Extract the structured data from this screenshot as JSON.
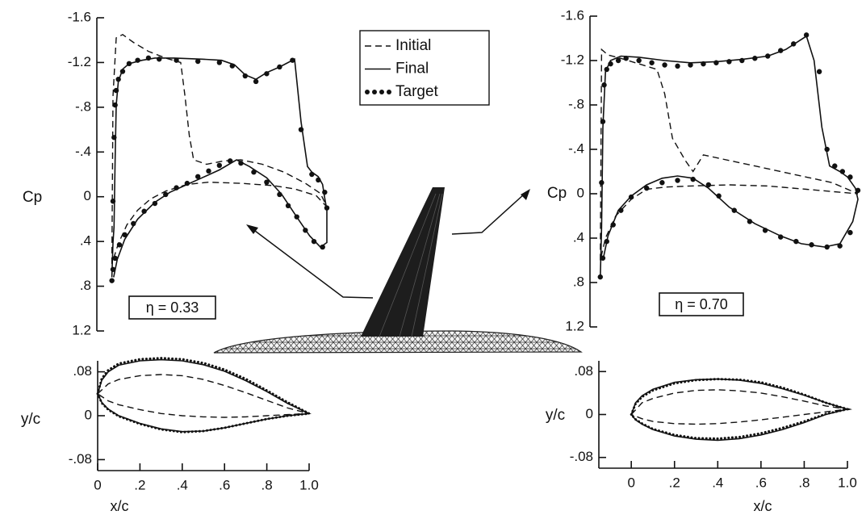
{
  "chart_data": [
    {
      "type": "line",
      "y_label": "Cp",
      "annotation": "η = 0.33",
      "legend": "top-right",
      "grid": false,
      "y_inverted": true,
      "xlim": [
        -0.07,
        1.0
      ],
      "ylim": [
        -1.6,
        1.2
      ],
      "yticks": [
        -1.6,
        -1.2,
        {
          "value": -0.8,
          "label": "-.8"
        },
        {
          "value": -0.4,
          "label": "-.4"
        },
        0,
        {
          "value": 0.4,
          "label": ".4"
        },
        {
          "value": 0.8,
          "label": ".8"
        },
        1.2
      ],
      "series": [
        {
          "name": "Initial",
          "color": "#111111",
          "style": "dashed",
          "x": [
            0,
            0.005,
            0.02,
            0.05,
            0.1,
            0.17,
            0.25,
            0.32,
            0.34,
            0.36,
            0.38,
            0.44,
            0.52,
            0.6,
            0.7,
            0.8,
            0.9,
            0.97,
            1.0,
            0.95,
            0.85,
            0.75,
            0.6,
            0.45,
            0.35,
            0.25,
            0.18,
            0.12,
            0.07,
            0.03,
            0
          ],
          "values": [
            0.6,
            -0.9,
            -1.42,
            -1.45,
            -1.38,
            -1.3,
            -1.24,
            -1.2,
            -0.9,
            -0.55,
            -0.33,
            -0.29,
            -0.32,
            -0.33,
            -0.29,
            -0.22,
            -0.12,
            -0.03,
            0.09,
            -0.01,
            -0.07,
            -0.1,
            -0.12,
            -0.13,
            -0.11,
            -0.05,
            0.02,
            0.12,
            0.25,
            0.42,
            0.6
          ]
        },
        {
          "name": "Final",
          "color": "#111111",
          "style": "solid",
          "x": [
            0,
            0.005,
            0.01,
            0.015,
            0.02,
            0.03,
            0.05,
            0.08,
            0.14,
            0.2,
            0.29,
            0.42,
            0.51,
            0.57,
            0.62,
            0.67,
            0.72,
            0.78,
            0.85,
            0.88,
            0.91,
            0.93,
            0.96,
            0.98,
            0.99,
            1.0,
            1.0,
            0.97,
            0.92,
            0.87,
            0.79,
            0.72,
            0.64,
            0.58,
            0.5,
            0.42,
            0.35,
            0.27,
            0.2,
            0.12,
            0.06,
            0.025,
            0.008
          ],
          "values": [
            0.72,
            0.41,
            0.27,
            -0.31,
            -0.82,
            -1.03,
            -1.14,
            -1.19,
            -1.22,
            -1.24,
            -1.24,
            -1.23,
            -1.22,
            -1.18,
            -1.09,
            -1.05,
            -1.11,
            -1.16,
            -1.23,
            -0.67,
            -0.27,
            -0.22,
            -0.18,
            -0.11,
            0.01,
            0.12,
            0.41,
            0.45,
            0.35,
            0.21,
            -0.02,
            -0.17,
            -0.27,
            -0.33,
            -0.24,
            -0.17,
            -0.11,
            -0.04,
            0.05,
            0.2,
            0.38,
            0.56,
            0.72
          ]
        },
        {
          "name": "Target",
          "color": "#111111",
          "style": "markers",
          "x": [
            0,
            0.005,
            0.01,
            0.015,
            0.02,
            0.03,
            0.05,
            0.08,
            0.12,
            0.17,
            0.22,
            0.3,
            0.4,
            0.5,
            0.56,
            0.62,
            0.67,
            0.72,
            0.78,
            0.84,
            0.88,
            0.93,
            0.96,
            0.99,
            1.0,
            0.98,
            0.94,
            0.9,
            0.86,
            0.82,
            0.78,
            0.72,
            0.66,
            0.6,
            0.55,
            0.5,
            0.45,
            0.4,
            0.35,
            0.3,
            0.25,
            0.2,
            0.15,
            0.1,
            0.06,
            0.035,
            0.015,
            0.005
          ],
          "values": [
            0.75,
            0.04,
            -0.53,
            -0.82,
            -0.95,
            -1.05,
            -1.12,
            -1.19,
            -1.22,
            -1.24,
            -1.23,
            -1.22,
            -1.21,
            -1.2,
            -1.17,
            -1.08,
            -1.03,
            -1.1,
            -1.16,
            -1.22,
            -0.6,
            -0.2,
            -0.15,
            -0.04,
            0.1,
            0.45,
            0.4,
            0.3,
            0.18,
            0.08,
            -0.02,
            -0.13,
            -0.22,
            -0.3,
            -0.32,
            -0.28,
            -0.23,
            -0.18,
            -0.12,
            -0.08,
            -0.02,
            0.06,
            0.13,
            0.24,
            0.34,
            0.43,
            0.55,
            0.65
          ]
        }
      ]
    },
    {
      "type": "line",
      "y_label": "Cp",
      "annotation": "η = 0.70",
      "grid": false,
      "y_inverted": true,
      "xlim": [
        -0.04,
        1.0
      ],
      "ylim": [
        -1.6,
        1.2
      ],
      "yticks": [
        -1.6,
        -1.2,
        {
          "value": -0.8,
          "label": "-.8"
        },
        {
          "value": -0.4,
          "label": "-.4"
        },
        0,
        {
          "value": 0.4,
          "label": ".4"
        },
        {
          "value": 0.8,
          "label": ".8"
        },
        1.2
      ],
      "series": [
        {
          "color": "#111111",
          "style": "dashed",
          "x": [
            0,
            0.005,
            0.03,
            0.08,
            0.15,
            0.22,
            0.25,
            0.28,
            0.33,
            0.36,
            0.4,
            0.5,
            0.6,
            0.7,
            0.8,
            0.9,
            1.0,
            0.9,
            0.8,
            0.65,
            0.5,
            0.35,
            0.25,
            0.18,
            0.12,
            0.06,
            0.02,
            0
          ],
          "values": [
            0.6,
            -1.3,
            -1.25,
            -1.22,
            -1.17,
            -1.12,
            -0.9,
            -0.5,
            -0.3,
            -0.2,
            -0.35,
            -0.3,
            -0.25,
            -0.2,
            -0.15,
            -0.1,
            0,
            -0.02,
            -0.04,
            -0.07,
            -0.08,
            -0.07,
            -0.06,
            -0.04,
            0.05,
            0.2,
            0.4,
            0.6
          ]
        },
        {
          "color": "#111111",
          "style": "solid",
          "x": [
            0,
            0.005,
            0.01,
            0.02,
            0.04,
            0.08,
            0.15,
            0.25,
            0.35,
            0.45,
            0.55,
            0.65,
            0.72,
            0.8,
            0.83,
            0.86,
            0.89,
            0.93,
            0.96,
            0.99,
            1.0,
            0.98,
            0.93,
            0.87,
            0.78,
            0.7,
            0.6,
            0.5,
            0.42,
            0.36,
            0.3,
            0.24,
            0.18,
            0.12,
            0.07,
            0.03,
            0.01
          ],
          "values": [
            0.75,
            0.3,
            -0.6,
            -1.1,
            -1.2,
            -1.24,
            -1.23,
            -1.2,
            -1.18,
            -1.19,
            -1.21,
            -1.24,
            -1.3,
            -1.42,
            -1.2,
            -0.6,
            -0.25,
            -0.2,
            -0.15,
            -0.05,
            0.05,
            0.25,
            0.45,
            0.48,
            0.45,
            0.38,
            0.27,
            0.12,
            -0.05,
            -0.14,
            -0.16,
            -0.14,
            -0.08,
            0.02,
            0.15,
            0.38,
            0.6
          ]
        },
        {
          "color": "#111111",
          "style": "markers",
          "x": [
            0,
            0.005,
            0.01,
            0.015,
            0.025,
            0.04,
            0.07,
            0.1,
            0.15,
            0.2,
            0.25,
            0.3,
            0.35,
            0.4,
            0.45,
            0.5,
            0.55,
            0.6,
            0.65,
            0.7,
            0.75,
            0.8,
            0.85,
            0.88,
            0.91,
            0.94,
            0.97,
            1.0,
            0.97,
            0.93,
            0.88,
            0.82,
            0.76,
            0.7,
            0.64,
            0.58,
            0.52,
            0.46,
            0.42,
            0.36,
            0.3,
            0.24,
            0.18,
            0.12,
            0.08,
            0.05,
            0.025,
            0.01
          ],
          "values": [
            0.75,
            -0.1,
            -0.65,
            -0.98,
            -1.12,
            -1.17,
            -1.2,
            -1.22,
            -1.2,
            -1.18,
            -1.16,
            -1.15,
            -1.16,
            -1.17,
            -1.18,
            -1.19,
            -1.2,
            -1.22,
            -1.24,
            -1.29,
            -1.35,
            -1.43,
            -1.1,
            -0.4,
            -0.25,
            -0.2,
            -0.15,
            -0.03,
            0.35,
            0.47,
            0.48,
            0.46,
            0.43,
            0.39,
            0.33,
            0.25,
            0.15,
            0.02,
            -0.08,
            -0.13,
            -0.12,
            -0.1,
            -0.05,
            0.03,
            0.15,
            0.28,
            0.43,
            0.58
          ]
        }
      ]
    },
    {
      "type": "line",
      "x_label": "x/c",
      "y_label": "y/c",
      "grid": false,
      "xlim": [
        0,
        1.0
      ],
      "ylim": [
        -0.1,
        0.1
      ],
      "xticks": [
        0,
        {
          "value": 0.2,
          "label": ".2"
        },
        {
          "value": 0.4,
          "label": ".4"
        },
        {
          "value": 0.6,
          "label": ".6"
        },
        {
          "value": 0.8,
          "label": ".8"
        },
        {
          "value": 1,
          "label": "1.0"
        }
      ],
      "yticks": [
        {
          "value": 0.08,
          "label": ".08"
        },
        0,
        {
          "value": -0.08,
          "label": "-.08"
        }
      ],
      "series": [
        {
          "color": "#111111",
          "style": "dashed",
          "x": [
            0,
            0.05,
            0.1,
            0.2,
            0.3,
            0.4,
            0.5,
            0.6,
            0.7,
            0.8,
            0.9,
            1.0,
            0.9,
            0.8,
            0.7,
            0.6,
            0.5,
            0.4,
            0.3,
            0.2,
            0.1,
            0.05,
            0
          ],
          "values": [
            0.04,
            0.058,
            0.066,
            0.073,
            0.075,
            0.073,
            0.066,
            0.055,
            0.042,
            0.028,
            0.014,
            0.004,
            0.002,
            0,
            -0.002,
            -0.003,
            -0.002,
            0,
            0.004,
            0.011,
            0.02,
            0.027,
            0.04
          ]
        },
        {
          "color": "#111111",
          "style": "solid",
          "x": [
            0,
            0.02,
            0.05,
            0.1,
            0.2,
            0.3,
            0.4,
            0.5,
            0.6,
            0.7,
            0.8,
            0.9,
            1.0,
            0.9,
            0.8,
            0.7,
            0.6,
            0.5,
            0.4,
            0.3,
            0.2,
            0.1,
            0.05,
            0.02,
            0
          ],
          "values": [
            0.04,
            0.065,
            0.08,
            0.092,
            0.1,
            0.102,
            0.1,
            0.093,
            0.081,
            0.064,
            0.044,
            0.022,
            0.004,
            0,
            -0.006,
            -0.014,
            -0.022,
            -0.028,
            -0.029,
            -0.024,
            -0.014,
            0,
            0.012,
            0.024,
            0.04
          ]
        },
        {
          "color": "#111111",
          "style": "dotted",
          "x": [
            0,
            0.02,
            0.05,
            0.1,
            0.2,
            0.3,
            0.4,
            0.5,
            0.6,
            0.7,
            0.8,
            0.9,
            1.0,
            0.9,
            0.8,
            0.7,
            0.6,
            0.5,
            0.4,
            0.3,
            0.2,
            0.1,
            0.05,
            0.02,
            0
          ],
          "values": [
            0.04,
            0.068,
            0.083,
            0.095,
            0.103,
            0.105,
            0.103,
            0.096,
            0.084,
            0.067,
            0.046,
            0.024,
            0.004,
            0,
            -0.006,
            -0.014,
            -0.022,
            -0.028,
            -0.03,
            -0.025,
            -0.015,
            -0.001,
            0.011,
            0.023,
            0.04
          ]
        }
      ]
    },
    {
      "type": "line",
      "x_label": "x/c",
      "y_label": "y/c",
      "grid": false,
      "xlim": [
        -0.15,
        1.0
      ],
      "ylim": [
        -0.1,
        0.1
      ],
      "xticks": [
        0,
        {
          "value": 0.2,
          "label": ".2"
        },
        {
          "value": 0.4,
          "label": ".4"
        },
        {
          "value": 0.6,
          "label": ".6"
        },
        {
          "value": 0.8,
          "label": ".8"
        },
        {
          "value": 1,
          "label": "1.0"
        }
      ],
      "yticks": [
        {
          "value": 0.08,
          "label": ".08"
        },
        0,
        {
          "value": -0.08,
          "label": "-.08"
        }
      ],
      "series": [
        {
          "color": "#111111",
          "style": "dashed",
          "x": [
            0,
            0.05,
            0.1,
            0.2,
            0.3,
            0.4,
            0.5,
            0.6,
            0.7,
            0.8,
            0.9,
            1.0,
            0.9,
            0.8,
            0.7,
            0.6,
            0.5,
            0.4,
            0.3,
            0.2,
            0.1,
            0.05,
            0
          ],
          "values": [
            0,
            0.022,
            0.03,
            0.04,
            0.045,
            0.046,
            0.044,
            0.04,
            0.033,
            0.025,
            0.016,
            0.01,
            0.005,
            0,
            -0.005,
            -0.01,
            -0.014,
            -0.017,
            -0.018,
            -0.017,
            -0.013,
            -0.008,
            0
          ]
        },
        {
          "color": "#111111",
          "style": "solid",
          "x": [
            0,
            0.02,
            0.05,
            0.1,
            0.2,
            0.3,
            0.4,
            0.5,
            0.6,
            0.7,
            0.8,
            0.9,
            1.0,
            0.9,
            0.8,
            0.7,
            0.6,
            0.5,
            0.4,
            0.3,
            0.2,
            0.1,
            0.05,
            0.02,
            0
          ],
          "values": [
            0,
            0.022,
            0.035,
            0.047,
            0.06,
            0.065,
            0.066,
            0.064,
            0.058,
            0.048,
            0.036,
            0.022,
            0.01,
            0,
            -0.015,
            -0.028,
            -0.038,
            -0.045,
            -0.048,
            -0.046,
            -0.04,
            -0.028,
            -0.018,
            -0.01,
            0
          ]
        },
        {
          "color": "#111111",
          "style": "dotted",
          "x": [
            0,
            0.02,
            0.05,
            0.1,
            0.2,
            0.3,
            0.4,
            0.5,
            0.6,
            0.7,
            0.8,
            0.9,
            1.0,
            0.9,
            0.8,
            0.7,
            0.6,
            0.5,
            0.4,
            0.3,
            0.2,
            0.1,
            0.05,
            0.02,
            0
          ],
          "values": [
            0,
            0.02,
            0.033,
            0.045,
            0.058,
            0.064,
            0.066,
            0.065,
            0.06,
            0.05,
            0.037,
            0.022,
            0.01,
            0.001,
            -0.013,
            -0.025,
            -0.035,
            -0.042,
            -0.045,
            -0.044,
            -0.038,
            -0.027,
            -0.017,
            -0.009,
            0
          ]
        }
      ]
    }
  ]
}
